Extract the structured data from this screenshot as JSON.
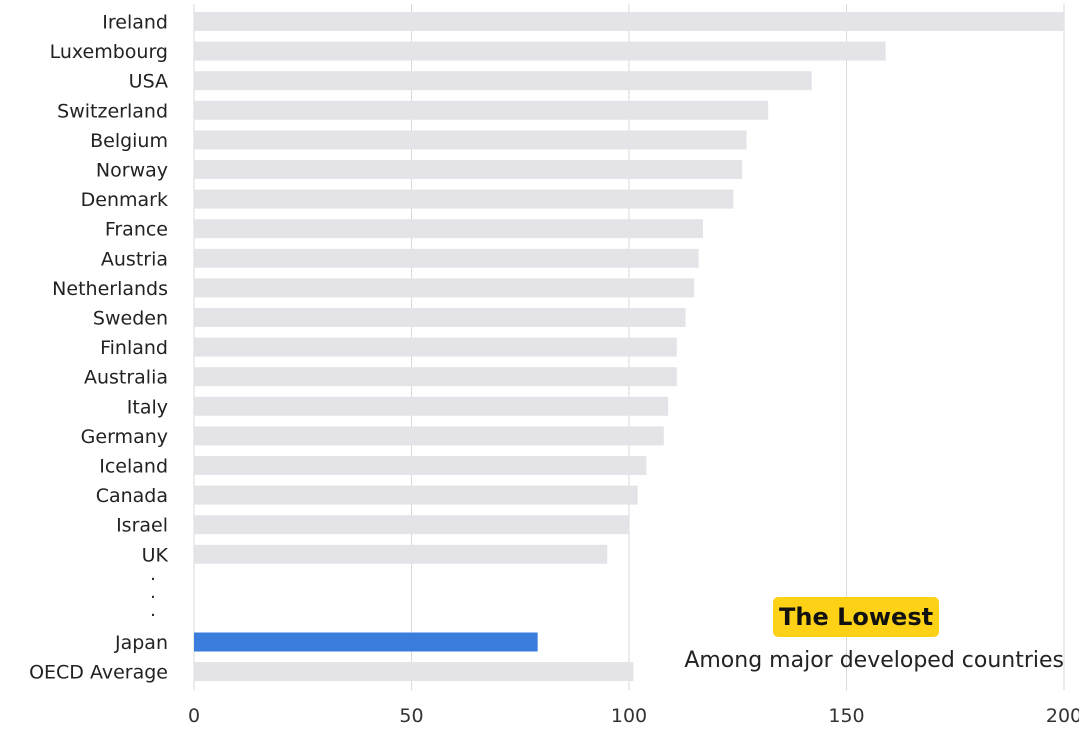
{
  "chart_data": {
    "type": "bar",
    "orientation": "horizontal",
    "categories": [
      "Ireland",
      "Luxembourg",
      "USA",
      "Switzerland",
      "Belgium",
      "Norway",
      "Denmark",
      "France",
      "Austria",
      "Netherlands",
      "Sweden",
      "Finland",
      "Australia",
      "Italy",
      "Germany",
      "Iceland",
      "Canada",
      "Israel",
      "UK",
      "Japan",
      "OECD Average"
    ],
    "values": [
      201,
      159,
      142,
      132,
      127,
      126,
      124,
      117,
      116,
      115,
      113,
      111,
      111,
      109,
      108,
      104,
      102,
      100,
      95,
      79,
      101
    ],
    "highlight": "Japan",
    "xlim": [
      0,
      200
    ],
    "xticks": [
      "0",
      "50",
      "100",
      "150",
      "200"
    ],
    "grid": "vertical",
    "colors": {
      "bar": "#e4e4e8",
      "highlight": "#3b7ddd",
      "badge": "#fcd116",
      "grid": "#d9d9d9"
    },
    "omission_marker": ". . .",
    "annotation": {
      "badge": "The Lowest",
      "text": "Among major developed countries"
    }
  }
}
